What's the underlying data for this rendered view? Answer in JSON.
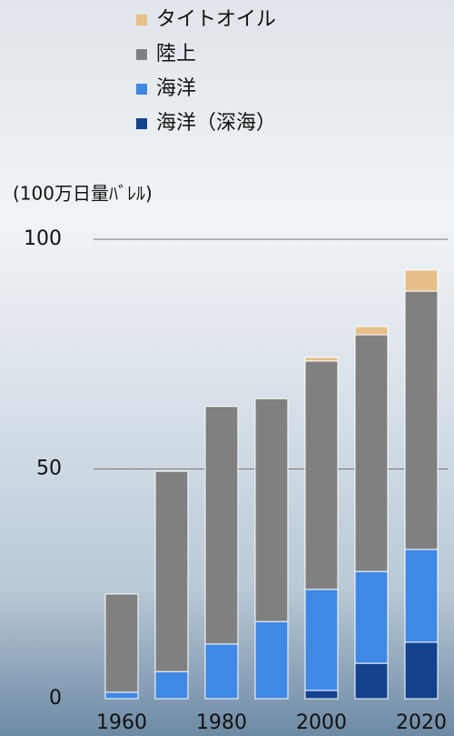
{
  "chart_data": {
    "type": "stacked_bar",
    "y_label": "(100万日量ﾊﾞﾚﾙ)",
    "categories": [
      "1960",
      null,
      "1980",
      null,
      "2000",
      null,
      "2020"
    ],
    "series": [
      {
        "name": "海洋（深海）",
        "color": "#12418e",
        "values": [
          0,
          0,
          0,
          0,
          1.8,
          7.7,
          12.3
        ]
      },
      {
        "name": "海洋",
        "color": "#3f88e4",
        "values": [
          1.4,
          5.9,
          11.9,
          16.8,
          22.0,
          20.0,
          20.2
        ]
      },
      {
        "name": "陸上",
        "color": "#808080",
        "values": [
          21.4,
          43.6,
          51.7,
          48.5,
          49.7,
          51.5,
          56.2
        ]
      },
      {
        "name": "タイトオイル",
        "color": "#e6c088",
        "values": [
          0,
          0,
          0,
          0,
          0.8,
          1.8,
          4.6
        ]
      }
    ],
    "ylim": [
      0,
      100
    ],
    "yticks": [
      0,
      50,
      100
    ],
    "grid": true
  }
}
